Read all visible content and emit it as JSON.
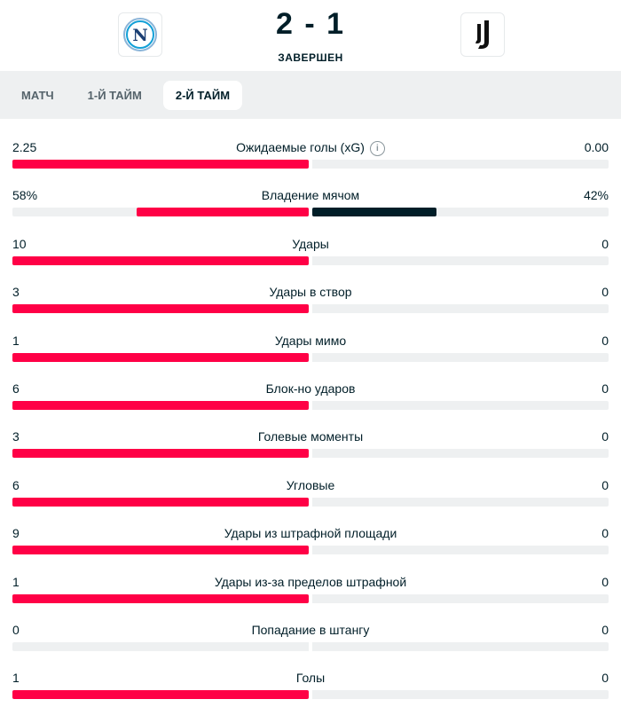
{
  "header": {
    "score": "2 - 1",
    "status": "ЗАВЕРШЕН",
    "home_logo": "napoli-logo",
    "away_logo": "juventus-logo"
  },
  "tabs": [
    {
      "label": "МАТЧ",
      "active": false
    },
    {
      "label": "1-Й ТАЙМ",
      "active": false
    },
    {
      "label": "2-Й ТАЙМ",
      "active": true
    }
  ],
  "colors": {
    "home": "#ff0046",
    "away": "#001e28",
    "track": "#eef0f1"
  },
  "stats": [
    {
      "label": "Ожидаемые голы (xG)",
      "home": "2.25",
      "away": "0.00",
      "home_share": 1.0,
      "away_share": 0.0,
      "info": true
    },
    {
      "label": "Владение мячом",
      "home": "58%",
      "away": "42%",
      "home_share": 0.58,
      "away_share": 0.42
    },
    {
      "label": "Удары",
      "home": "10",
      "away": "0",
      "home_share": 1.0,
      "away_share": 0.0
    },
    {
      "label": "Удары в створ",
      "home": "3",
      "away": "0",
      "home_share": 1.0,
      "away_share": 0.0
    },
    {
      "label": "Удары мимо",
      "home": "1",
      "away": "0",
      "home_share": 1.0,
      "away_share": 0.0
    },
    {
      "label": "Блок-но ударов",
      "home": "6",
      "away": "0",
      "home_share": 1.0,
      "away_share": 0.0
    },
    {
      "label": "Голевые моменты",
      "home": "3",
      "away": "0",
      "home_share": 1.0,
      "away_share": 0.0
    },
    {
      "label": "Угловые",
      "home": "6",
      "away": "0",
      "home_share": 1.0,
      "away_share": 0.0
    },
    {
      "label": "Удары из штрафной площади",
      "home": "9",
      "away": "0",
      "home_share": 1.0,
      "away_share": 0.0
    },
    {
      "label": "Удары из-за пределов штрафной",
      "home": "1",
      "away": "0",
      "home_share": 1.0,
      "away_share": 0.0
    },
    {
      "label": "Попадание в штангу",
      "home": "0",
      "away": "0",
      "home_share": 0.0,
      "away_share": 0.0
    },
    {
      "label": "Голы",
      "home": "1",
      "away": "0",
      "home_share": 1.0,
      "away_share": 0.0
    }
  ]
}
